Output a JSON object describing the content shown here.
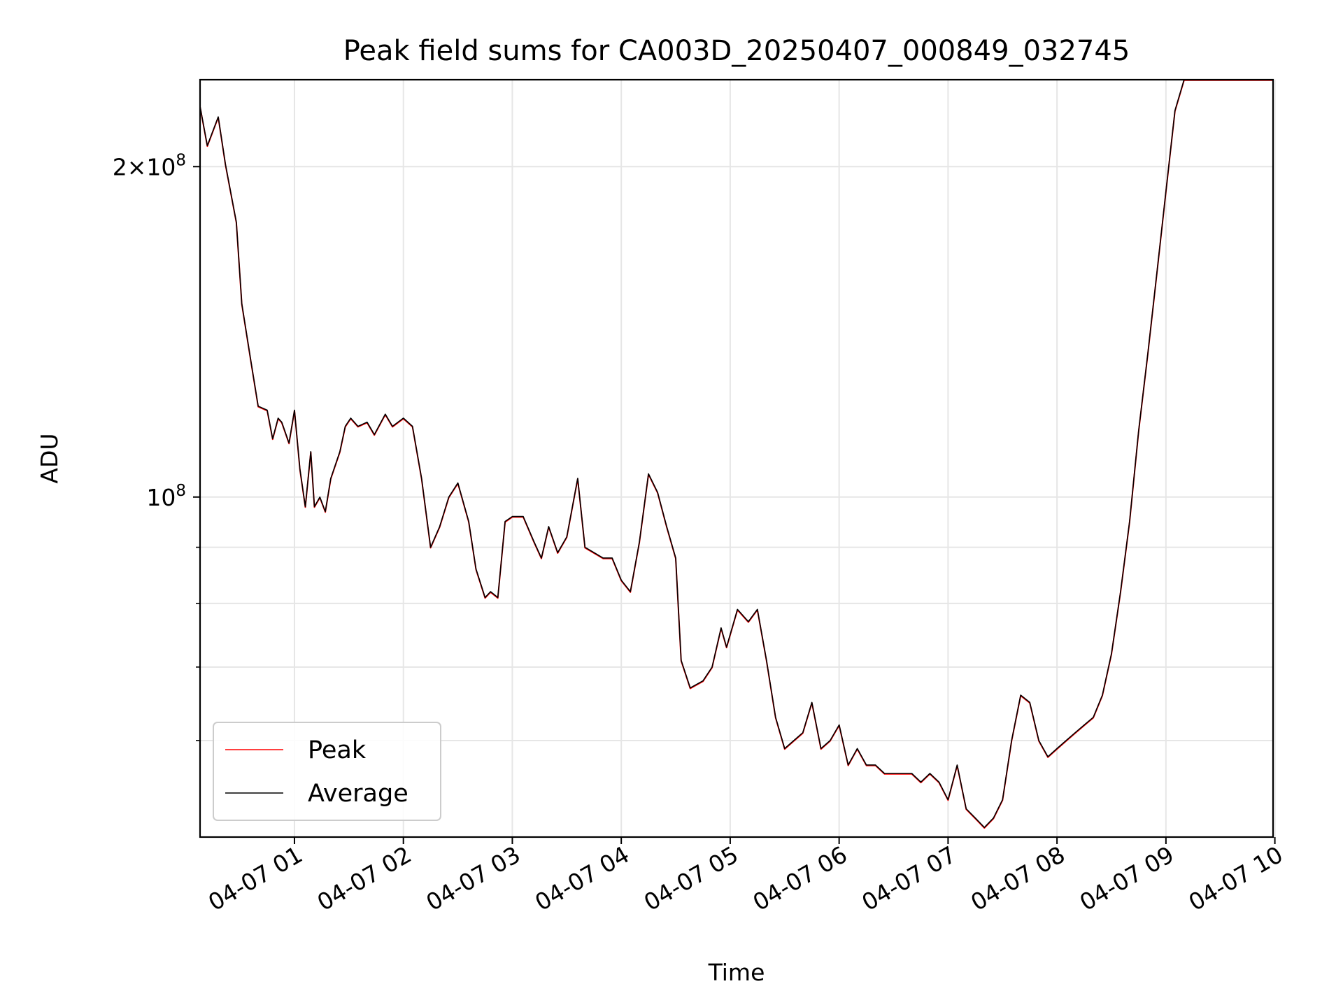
{
  "chart_data": {
    "type": "line",
    "title": "Peak field sums for CA003D_20250407_000849_032745",
    "xlabel": "Time",
    "ylabel": "ADU",
    "yscale": "log",
    "xlim": [
      "2025-04-07 00:08",
      "2025-04-07 09:59"
    ],
    "ylim": [
      49000000,
      240000000
    ],
    "grid": true,
    "legend_position": "lower-left",
    "x_ticks": [
      "04-07 01",
      "04-07 02",
      "04-07 03",
      "04-07 04",
      "04-07 05",
      "04-07 06",
      "04-07 07",
      "04-07 08",
      "04-07 09",
      "04-07 10"
    ],
    "y_ticks": [
      {
        "value": 100000000,
        "mantissa": "",
        "base": "10",
        "exp": "8"
      },
      {
        "value": 200000000,
        "mantissa": "2×",
        "base": "10",
        "exp": "8"
      }
    ],
    "y_minor_ticks": [
      60000000,
      70000000,
      80000000,
      90000000
    ],
    "x": [
      "00:08",
      "00:12",
      "00:18",
      "00:22",
      "00:28",
      "00:31",
      "00:36",
      "00:40",
      "00:45",
      "00:48",
      "00:51",
      "00:53",
      "00:57",
      "01:00",
      "01:03",
      "01:06",
      "01:09",
      "01:11",
      "01:14",
      "01:17",
      "01:20",
      "01:25",
      "01:28",
      "01:31",
      "01:35",
      "01:40",
      "01:44",
      "01:50",
      "01:54",
      "02:00",
      "02:05",
      "02:10",
      "02:15",
      "02:20",
      "02:25",
      "02:30",
      "02:36",
      "02:40",
      "02:45",
      "02:48",
      "02:52",
      "02:56",
      "03:00",
      "03:06",
      "03:12",
      "03:16",
      "03:20",
      "03:25",
      "03:30",
      "03:36",
      "03:40",
      "03:45",
      "03:50",
      "03:55",
      "04:00",
      "04:05",
      "04:10",
      "04:15",
      "04:20",
      "04:25",
      "04:30",
      "04:33",
      "04:38",
      "04:45",
      "04:50",
      "04:55",
      "04:58",
      "05:04",
      "05:10",
      "05:15",
      "05:20",
      "05:25",
      "05:30",
      "05:35",
      "05:40",
      "05:45",
      "05:50",
      "05:55",
      "06:00",
      "06:05",
      "06:10",
      "06:15",
      "06:20",
      "06:25",
      "06:30",
      "06:35",
      "06:40",
      "06:45",
      "06:50",
      "06:55",
      "07:00",
      "07:05",
      "07:10",
      "07:15",
      "07:20",
      "07:25",
      "07:30",
      "07:35",
      "07:40",
      "07:45",
      "07:50",
      "07:55",
      "08:00",
      "08:05",
      "08:10",
      "08:15",
      "08:20",
      "08:25",
      "08:30",
      "08:35",
      "08:40",
      "08:45",
      "08:50",
      "08:55",
      "09:00",
      "09:05",
      "09:10",
      "09:15",
      "09:20",
      "09:25",
      "09:30",
      "09:35",
      "09:40",
      "09:45",
      "09:50",
      "09:55",
      "09:59"
    ],
    "series": [
      {
        "name": "Peak",
        "color": "#ff0000",
        "values": [
          227,
          209,
          222,
          201,
          178,
          150,
          133,
          121,
          120,
          113,
          118,
          117,
          112,
          120,
          106,
          98,
          110,
          98,
          100,
          97,
          104,
          110,
          116,
          118,
          116,
          117,
          114,
          119,
          116,
          118,
          116,
          104,
          90,
          94,
          100,
          103,
          95,
          86,
          81,
          82,
          81,
          95,
          96,
          96,
          91,
          88,
          94,
          89,
          92,
          104,
          90,
          89,
          88,
          88,
          84,
          82,
          91,
          105,
          101,
          94,
          88,
          71,
          67,
          68,
          70,
          76,
          73,
          79,
          77,
          79,
          71,
          63,
          59,
          60,
          61,
          65,
          59,
          60,
          62,
          57,
          59,
          57,
          57,
          56,
          56,
          56,
          56,
          55,
          56,
          55,
          53,
          57,
          52,
          51,
          50,
          51,
          53,
          60,
          66,
          65,
          60,
          58,
          59,
          60,
          61,
          62,
          63,
          66,
          72,
          82,
          95,
          115,
          135,
          160,
          190,
          225,
          240,
          240,
          240,
          240,
          240,
          240,
          240,
          240,
          240,
          240,
          240
        ]
      },
      {
        "name": "Average",
        "color": "#000000",
        "values": [
          227,
          209,
          222,
          201,
          178,
          150,
          133,
          121,
          120,
          113,
          118,
          117,
          112,
          120,
          106,
          98,
          110,
          98,
          100,
          97,
          104,
          110,
          116,
          118,
          116,
          117,
          114,
          119,
          116,
          118,
          116,
          104,
          90,
          94,
          100,
          103,
          95,
          86,
          81,
          82,
          81,
          95,
          96,
          96,
          91,
          88,
          94,
          89,
          92,
          104,
          90,
          89,
          88,
          88,
          84,
          82,
          91,
          105,
          101,
          94,
          88,
          71,
          67,
          68,
          70,
          76,
          73,
          79,
          77,
          79,
          71,
          63,
          59,
          60,
          61,
          65,
          59,
          60,
          62,
          57,
          59,
          57,
          57,
          56,
          56,
          56,
          56,
          55,
          56,
          55,
          53,
          57,
          52,
          51,
          50,
          51,
          53,
          60,
          66,
          65,
          60,
          58,
          59,
          60,
          61,
          62,
          63,
          66,
          72,
          82,
          95,
          115,
          135,
          160,
          190,
          225,
          240,
          240,
          240,
          240,
          240,
          240,
          240,
          240,
          240,
          240,
          240
        ]
      }
    ],
    "value_unit_note": ""
  }
}
